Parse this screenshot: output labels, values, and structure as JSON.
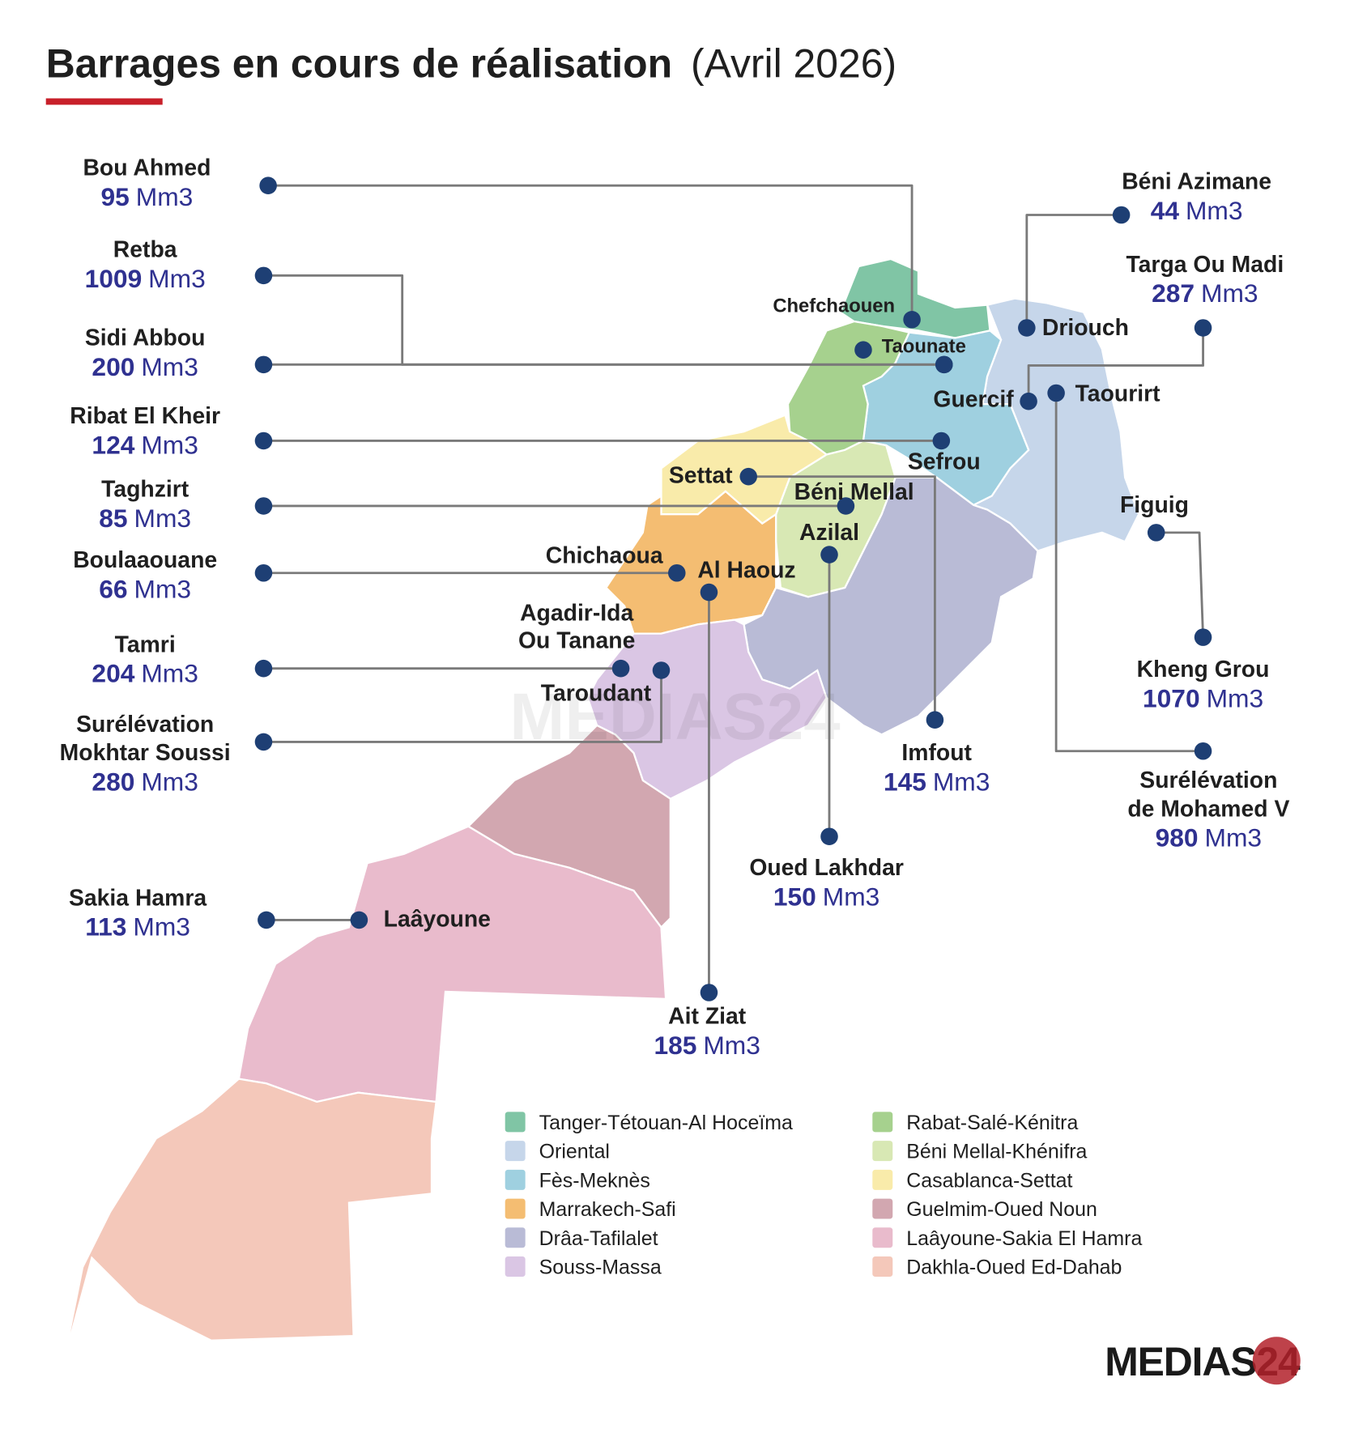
{
  "title": "Barrages en cours de réalisation",
  "subtitle": "(Avril 2026)",
  "unit": "Mm3",
  "logo": "MEDIAS24",
  "dams": [
    {
      "name": [
        "Bou Ahmed"
      ],
      "capacity": 95
    },
    {
      "name": [
        "Retba"
      ],
      "capacity": 1009
    },
    {
      "name": [
        "Sidi Abbou"
      ],
      "capacity": 200
    },
    {
      "name": [
        "Ribat El Kheir"
      ],
      "capacity": 124
    },
    {
      "name": [
        "Taghzirt"
      ],
      "capacity": 85
    },
    {
      "name": [
        "Boulaaouane"
      ],
      "capacity": 66
    },
    {
      "name": [
        "Tamri"
      ],
      "capacity": 204
    },
    {
      "name": [
        "Surélévation",
        "Mokhtar Soussi"
      ],
      "capacity": 280
    },
    {
      "name": [
        "Sakia Hamra"
      ],
      "capacity": 113
    },
    {
      "name": [
        "Béni Azimane"
      ],
      "capacity": 44
    },
    {
      "name": [
        "Targa Ou Madi"
      ],
      "capacity": 287
    },
    {
      "name": [
        "Kheng Grou"
      ],
      "capacity": 1070
    },
    {
      "name": [
        "Surélévation",
        "de Mohamed V"
      ],
      "capacity": 980
    },
    {
      "name": [
        "Imfout"
      ],
      "capacity": 145
    },
    {
      "name": [
        "Oued Lakhdar"
      ],
      "capacity": 150
    },
    {
      "name": [
        "Ait Ziat"
      ],
      "capacity": 185
    }
  ],
  "places": [
    [
      "Chefchaouen"
    ],
    [
      "Taounate"
    ],
    [
      "Sefrou"
    ],
    [
      "Béni Mellal"
    ],
    [
      "Chichaoua"
    ],
    [
      "Agadir-Ida",
      "Ou Tanane"
    ],
    [
      "Taroudant"
    ],
    [
      "Laâyoune"
    ],
    [
      "Driouch"
    ],
    [
      "Guercif"
    ],
    [
      "Figuig"
    ],
    [
      "Taourirt"
    ],
    [
      "Settat"
    ],
    [
      "Azilal"
    ],
    [
      "Al Haouz"
    ]
  ],
  "regions": [
    {
      "name": "Tanger-Tétouan-Al Hoceïma",
      "color": "#80c5a5"
    },
    {
      "name": "Oriental",
      "color": "#c6d6ea"
    },
    {
      "name": "Fès-Meknès",
      "color": "#9fd0e0"
    },
    {
      "name": "Marrakech-Safi",
      "color": "#f4bd72"
    },
    {
      "name": "Drâa-Tafilalet",
      "color": "#b9bbd6"
    },
    {
      "name": "Souss-Massa",
      "color": "#dac6e4"
    },
    {
      "name": "Rabat-Salé-Kénitra",
      "color": "#a6d18e"
    },
    {
      "name": "Béni Mellal-Khénifra",
      "color": "#d8e8b4"
    },
    {
      "name": "Casablanca-Settat",
      "color": "#f9ebaa"
    },
    {
      "name": "Guelmim-Oued Noun",
      "color": "#d2a7b0"
    },
    {
      "name": "Laâyoune-Sakia El Hamra",
      "color": "#e9bbcc"
    },
    {
      "name": "Dakhla-Oued Ed-Dahab",
      "color": "#f4c8ba"
    }
  ]
}
